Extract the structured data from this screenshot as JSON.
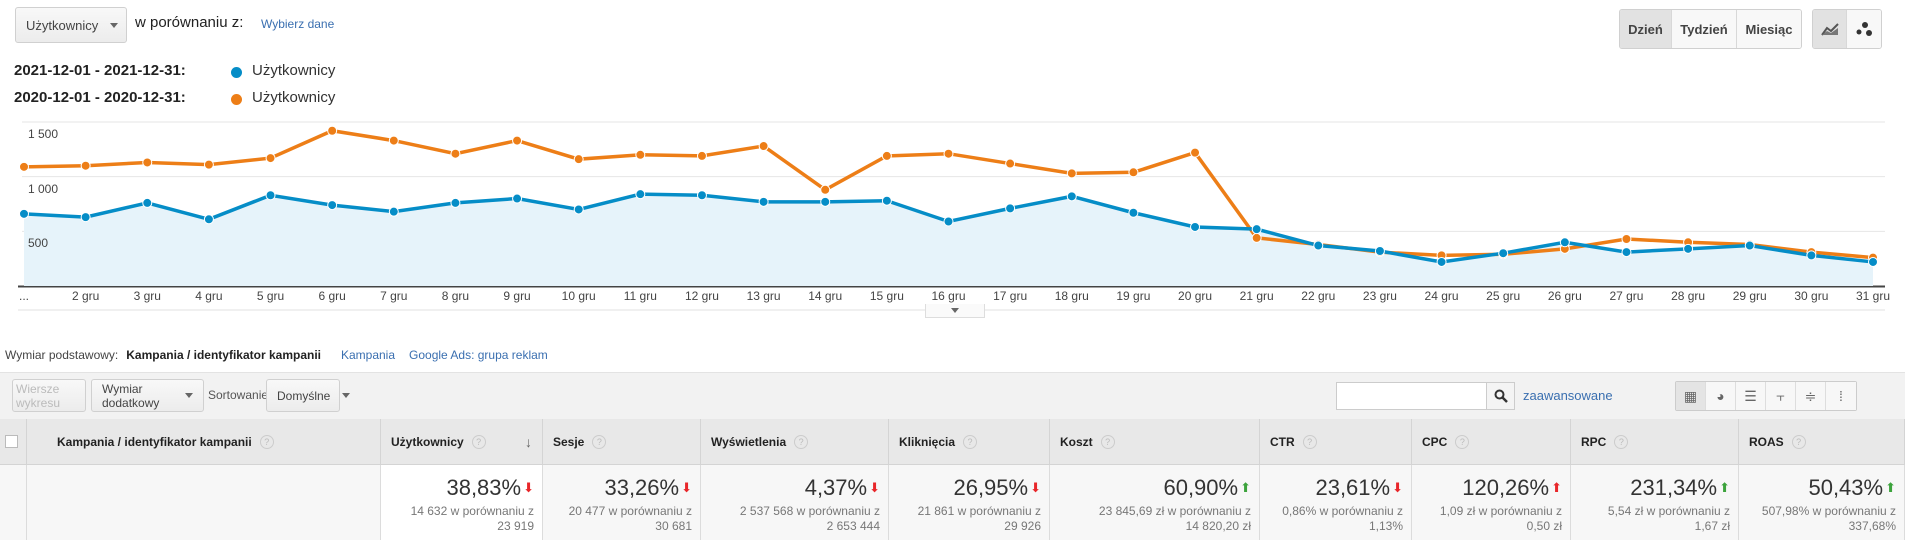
{
  "controls": {
    "metric_select": "Użytkownicy",
    "compare_label": "w porównaniu z:",
    "choose_data": "Wybierz dane",
    "period_buttons": [
      "Dzień",
      "Tydzień",
      "Miesiąc"
    ],
    "active_period": "Dzień"
  },
  "legend": [
    {
      "range": "2021-12-01 - 2021-12-31:",
      "label": "Użytkownicy",
      "color": "#058dc7"
    },
    {
      "range": "2020-12-01 - 2020-12-31:",
      "label": "Użytkownicy",
      "color": "#ed7e17"
    }
  ],
  "chart_data": {
    "type": "line",
    "x": [
      "...",
      "2 gru",
      "3 gru",
      "4 gru",
      "5 gru",
      "6 gru",
      "7 gru",
      "8 gru",
      "9 gru",
      "10 gru",
      "11 gru",
      "12 gru",
      "13 gru",
      "14 gru",
      "15 gru",
      "16 gru",
      "17 gru",
      "18 gru",
      "19 gru",
      "20 gru",
      "21 gru",
      "22 gru",
      "23 gru",
      "24 gru",
      "25 gru",
      "26 gru",
      "27 gru",
      "28 gru",
      "29 gru",
      "30 gru",
      "31 gru"
    ],
    "yticks": [
      "1 500",
      "1 000",
      "500"
    ],
    "ytick_values": [
      1500,
      1000,
      500
    ],
    "ylim": [
      0,
      1500
    ],
    "series": [
      {
        "name": "Użytkownicy 2021-12",
        "color": "#058dc7",
        "values": [
          660,
          630,
          760,
          610,
          830,
          740,
          680,
          760,
          800,
          700,
          840,
          830,
          770,
          770,
          780,
          590,
          710,
          820,
          670,
          540,
          520,
          370,
          320,
          220,
          300,
          400,
          310,
          340,
          370,
          280,
          220
        ]
      },
      {
        "name": "Użytkownicy 2020-12",
        "color": "#ed7e17",
        "values": [
          1090,
          1100,
          1130,
          1110,
          1170,
          1420,
          1330,
          1210,
          1330,
          1160,
          1200,
          1190,
          1280,
          880,
          1190,
          1210,
          1120,
          1030,
          1040,
          1220,
          440,
          380,
          310,
          280,
          290,
          340,
          430,
          400,
          380,
          310,
          260
        ]
      }
    ]
  },
  "dimension": {
    "label": "Wymiar podstawowy:",
    "active": "Kampania / identyfikator kampanii",
    "options": [
      "Kampania",
      "Google Ads: grupa reklam"
    ]
  },
  "toolbar": {
    "plot_rows": "Wiersze wykresu",
    "secondary": "Wymiar dodatkowy",
    "sort_label": "Sortowanie:",
    "sort_value": "Domyślne",
    "search_value": "",
    "advanced": "zaawansowane"
  },
  "table": {
    "dim_header": "Kampania / identyfikator kampanii",
    "columns": [
      {
        "h": "Użytkownicy",
        "pct": "38,83%",
        "dir": "down",
        "color": "#e8262a",
        "cmp1": "14 632 w porównaniu z",
        "cmp2": "23 919"
      },
      {
        "h": "Sesje",
        "pct": "33,26%",
        "dir": "down",
        "color": "#e8262a",
        "cmp1": "20 477 w porównaniu z",
        "cmp2": "30 681"
      },
      {
        "h": "Wyświetlenia",
        "pct": "4,37%",
        "dir": "down",
        "color": "#e8262a",
        "cmp1": "2 537 568 w porównaniu z",
        "cmp2": "2 653 444"
      },
      {
        "h": "Kliknięcia",
        "pct": "26,95%",
        "dir": "down",
        "color": "#e8262a",
        "cmp1": "21 861 w porównaniu z",
        "cmp2": "29 926"
      },
      {
        "h": "Koszt",
        "pct": "60,90%",
        "dir": "up",
        "color": "#3ca33c",
        "cmp1": "23 845,69 zł w porównaniu z",
        "cmp2": "14 820,20 zł"
      },
      {
        "h": "CTR",
        "pct": "23,61%",
        "dir": "down",
        "color": "#e8262a",
        "cmp1": "0,86% w porównaniu z",
        "cmp2": "1,13%"
      },
      {
        "h": "CPC",
        "pct": "120,26%",
        "dir": "up",
        "color": "#e8262a",
        "cmp1": "1,09 zł w porównaniu z",
        "cmp2": "0,50 zł"
      },
      {
        "h": "RPC",
        "pct": "231,34%",
        "dir": "up",
        "color": "#3ca33c",
        "cmp1": "5,54 zł w porównaniu z",
        "cmp2": "1,67 zł"
      },
      {
        "h": "ROAS",
        "pct": "50,43%",
        "dir": "up",
        "color": "#3ca33c",
        "cmp1": "507,98% w porównaniu z",
        "cmp2": "337,68%"
      }
    ]
  }
}
